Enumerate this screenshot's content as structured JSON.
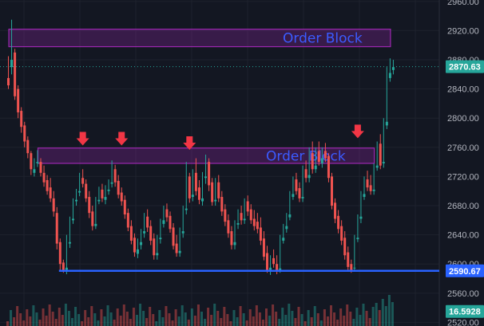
{
  "chart_data": {
    "type": "candlestick",
    "y_axis": {
      "ticks": [
        "2960.00",
        "2920.00",
        "2880.00",
        "2840.00",
        "2800.00",
        "2760.00",
        "2720.00",
        "2680.00",
        "2640.00",
        "2600.00",
        "2560.00",
        "2520.00"
      ],
      "ylim": [
        2515,
        2962
      ]
    },
    "price_tags": [
      {
        "value": "2870.63",
        "level": 2870.63,
        "bg": "#26a69a",
        "fg": "#ffffff"
      },
      {
        "value": "2590.67",
        "level": 2590.67,
        "bg": "#2962ff",
        "fg": "#ffffff"
      },
      {
        "value": "16.5928",
        "level": 2535,
        "bg": "#26a69a",
        "fg": "#ffffff"
      }
    ],
    "zones": [
      {
        "label": "Order Block",
        "top": 2922,
        "bottom": 2898,
        "from_bar": 1,
        "to_bar": 118
      },
      {
        "label": "Order Block",
        "top": 2759,
        "bottom": 2738,
        "from_bar": 10,
        "to_bar": 113
      }
    ],
    "support_line": {
      "level": 2590.67,
      "from_bar": 16,
      "to_bar": 125
    },
    "arrows": [
      {
        "bar": 23,
        "level": 2768
      },
      {
        "bar": 35,
        "level": 2768
      },
      {
        "bar": 56,
        "level": 2762
      },
      {
        "bar": 108,
        "level": 2778
      }
    ],
    "candles": [
      [
        2855,
        2885,
        2845,
        2840,
        "r"
      ],
      [
        2880,
        2935,
        2870,
        2860,
        "g"
      ],
      [
        2890,
        2895,
        2830,
        2825,
        "r"
      ],
      [
        2840,
        2845,
        2808,
        2800,
        "r"
      ],
      [
        2810,
        2815,
        2788,
        2780,
        "r"
      ],
      [
        2790,
        2795,
        2768,
        2760,
        "r"
      ],
      [
        2770,
        2775,
        2752,
        2745,
        "r"
      ],
      [
        2752,
        2755,
        2730,
        2722,
        "r"
      ],
      [
        2730,
        2745,
        2725,
        2720,
        "g"
      ],
      [
        2740,
        2756,
        2738,
        2733,
        "g"
      ],
      [
        2740,
        2745,
        2725,
        2720,
        "r"
      ],
      [
        2725,
        2735,
        2712,
        2706,
        "r"
      ],
      [
        2715,
        2722,
        2700,
        2695,
        "r"
      ],
      [
        2705,
        2718,
        2690,
        2685,
        "r"
      ],
      [
        2690,
        2700,
        2672,
        2665,
        "r"
      ],
      [
        2670,
        2678,
        2628,
        2620,
        "r"
      ],
      [
        2630,
        2635,
        2600,
        2592,
        "r"
      ],
      [
        2602,
        2606,
        2590,
        2588,
        "r"
      ],
      [
        2595,
        2640,
        2592,
        2586,
        "g"
      ],
      [
        2630,
        2665,
        2628,
        2622,
        "g"
      ],
      [
        2662,
        2690,
        2660,
        2655,
        "g"
      ],
      [
        2688,
        2703,
        2686,
        2680,
        "g"
      ],
      [
        2700,
        2725,
        2698,
        2693,
        "g"
      ],
      [
        2718,
        2730,
        2710,
        2705,
        "r"
      ],
      [
        2710,
        2716,
        2690,
        2685,
        "r"
      ],
      [
        2692,
        2700,
        2670,
        2663,
        "r"
      ],
      [
        2672,
        2680,
        2652,
        2646,
        "r"
      ],
      [
        2655,
        2692,
        2652,
        2648,
        "g"
      ],
      [
        2688,
        2706,
        2686,
        2682,
        "g"
      ],
      [
        2702,
        2710,
        2690,
        2685,
        "r"
      ],
      [
        2692,
        2708,
        2688,
        2682,
        "g"
      ],
      [
        2702,
        2716,
        2700,
        2695,
        "g"
      ],
      [
        2712,
        2742,
        2710,
        2705,
        "g"
      ],
      [
        2730,
        2736,
        2712,
        2706,
        "r"
      ],
      [
        2714,
        2722,
        2695,
        2690,
        "r"
      ],
      [
        2698,
        2705,
        2686,
        2680,
        "r"
      ],
      [
        2688,
        2694,
        2668,
        2662,
        "r"
      ],
      [
        2670,
        2676,
        2650,
        2645,
        "r"
      ],
      [
        2652,
        2660,
        2632,
        2627,
        "r"
      ],
      [
        2636,
        2642,
        2616,
        2610,
        "r"
      ],
      [
        2620,
        2635,
        2614,
        2608,
        "g"
      ],
      [
        2630,
        2648,
        2626,
        2620,
        "g"
      ],
      [
        2645,
        2670,
        2642,
        2636,
        "g"
      ],
      [
        2665,
        2675,
        2650,
        2644,
        "r"
      ],
      [
        2652,
        2660,
        2632,
        2626,
        "r"
      ],
      [
        2635,
        2642,
        2612,
        2606,
        "r"
      ],
      [
        2615,
        2640,
        2612,
        2606,
        "g"
      ],
      [
        2636,
        2662,
        2634,
        2628,
        "g"
      ],
      [
        2660,
        2680,
        2655,
        2650,
        "g"
      ],
      [
        2675,
        2683,
        2664,
        2658,
        "r"
      ],
      [
        2666,
        2672,
        2648,
        2643,
        "r"
      ],
      [
        2650,
        2656,
        2625,
        2620,
        "r"
      ],
      [
        2628,
        2640,
        2615,
        2610,
        "r"
      ],
      [
        2618,
        2650,
        2615,
        2610,
        "g"
      ],
      [
        2645,
        2680,
        2642,
        2636,
        "g"
      ],
      [
        2676,
        2740,
        2674,
        2668,
        "g"
      ],
      [
        2720,
        2725,
        2690,
        2684,
        "r"
      ],
      [
        2695,
        2730,
        2692,
        2686,
        "g"
      ],
      [
        2725,
        2745,
        2700,
        2694,
        "r"
      ],
      [
        2705,
        2715,
        2688,
        2682,
        "r"
      ],
      [
        2690,
        2726,
        2686,
        2680,
        "g"
      ],
      [
        2720,
        2750,
        2718,
        2710,
        "g"
      ],
      [
        2740,
        2745,
        2708,
        2700,
        "r"
      ],
      [
        2712,
        2718,
        2685,
        2680,
        "r"
      ],
      [
        2688,
        2718,
        2686,
        2680,
        "g"
      ],
      [
        2712,
        2722,
        2690,
        2685,
        "r"
      ],
      [
        2692,
        2700,
        2672,
        2666,
        "r"
      ],
      [
        2675,
        2682,
        2658,
        2652,
        "r"
      ],
      [
        2660,
        2668,
        2642,
        2636,
        "r"
      ],
      [
        2645,
        2652,
        2626,
        2620,
        "r"
      ],
      [
        2630,
        2660,
        2626,
        2620,
        "g"
      ],
      [
        2656,
        2675,
        2654,
        2648,
        "g"
      ],
      [
        2670,
        2680,
        2660,
        2654,
        "r"
      ],
      [
        2662,
        2690,
        2660,
        2655,
        "g"
      ],
      [
        2686,
        2694,
        2672,
        2666,
        "r"
      ],
      [
        2675,
        2682,
        2660,
        2655,
        "r"
      ],
      [
        2662,
        2674,
        2652,
        2646,
        "r"
      ],
      [
        2658,
        2670,
        2648,
        2642,
        "r"
      ],
      [
        2650,
        2664,
        2632,
        2626,
        "r"
      ],
      [
        2635,
        2645,
        2610,
        2605,
        "r"
      ],
      [
        2615,
        2625,
        2592,
        2588,
        "r"
      ],
      [
        2595,
        2612,
        2590,
        2585,
        "g"
      ],
      [
        2608,
        2620,
        2600,
        2595,
        "r"
      ],
      [
        2600,
        2612,
        2590,
        2586,
        "r"
      ],
      [
        2594,
        2640,
        2592,
        2588,
        "g"
      ],
      [
        2636,
        2655,
        2632,
        2628,
        "g"
      ],
      [
        2652,
        2670,
        2648,
        2643,
        "g"
      ],
      [
        2668,
        2700,
        2664,
        2660,
        "g"
      ],
      [
        2696,
        2720,
        2692,
        2688,
        "g"
      ],
      [
        2716,
        2725,
        2700,
        2695,
        "r"
      ],
      [
        2704,
        2712,
        2690,
        2685,
        "r"
      ],
      [
        2692,
        2735,
        2690,
        2685,
        "g"
      ],
      [
        2730,
        2742,
        2718,
        2712,
        "r"
      ],
      [
        2722,
        2760,
        2718,
        2712,
        "g"
      ],
      [
        2752,
        2768,
        2730,
        2724,
        "r"
      ],
      [
        2735,
        2760,
        2730,
        2725,
        "g"
      ],
      [
        2755,
        2768,
        2740,
        2735,
        "r"
      ],
      [
        2745,
        2760,
        2738,
        2732,
        "g"
      ],
      [
        2755,
        2766,
        2745,
        2740,
        "r"
      ],
      [
        2748,
        2752,
        2718,
        2712,
        "r"
      ],
      [
        2720,
        2725,
        2680,
        2675,
        "r"
      ],
      [
        2684,
        2690,
        2662,
        2656,
        "r"
      ],
      [
        2666,
        2674,
        2648,
        2642,
        "r"
      ],
      [
        2652,
        2660,
        2632,
        2626,
        "r"
      ],
      [
        2636,
        2645,
        2612,
        2606,
        "r"
      ],
      [
        2616,
        2624,
        2596,
        2590,
        "r"
      ],
      [
        2600,
        2606,
        2592,
        2588,
        "r"
      ],
      [
        2595,
        2640,
        2594,
        2590,
        "g"
      ],
      [
        2636,
        2668,
        2634,
        2630,
        "g"
      ],
      [
        2665,
        2700,
        2662,
        2656,
        "g"
      ],
      [
        2696,
        2720,
        2692,
        2688,
        "g"
      ],
      [
        2716,
        2728,
        2705,
        2700,
        "r"
      ],
      [
        2708,
        2722,
        2700,
        2695,
        "r"
      ],
      [
        2702,
        2738,
        2700,
        2695,
        "g"
      ],
      [
        2735,
        2768,
        2732,
        2728,
        "g"
      ],
      [
        2765,
        2778,
        2735,
        2730,
        "r"
      ],
      [
        2740,
        2800,
        2738,
        2732,
        "g"
      ],
      [
        2795,
        2870,
        2790,
        2785,
        "g"
      ],
      [
        2862,
        2882,
        2855,
        2850,
        "g"
      ],
      [
        2870,
        2880,
        2866,
        2860,
        "g"
      ]
    ],
    "candle_xy": {
      "x0": 9,
      "dx": 4.05,
      "w": 3
    },
    "colors": {
      "up": "#26a69a",
      "down": "#ef5350",
      "zone_stroke": "#9c27b0",
      "zone_fill": "rgba(156,39,176,0.28)",
      "line": "#2962ff",
      "arrow": "#f23645"
    }
  }
}
